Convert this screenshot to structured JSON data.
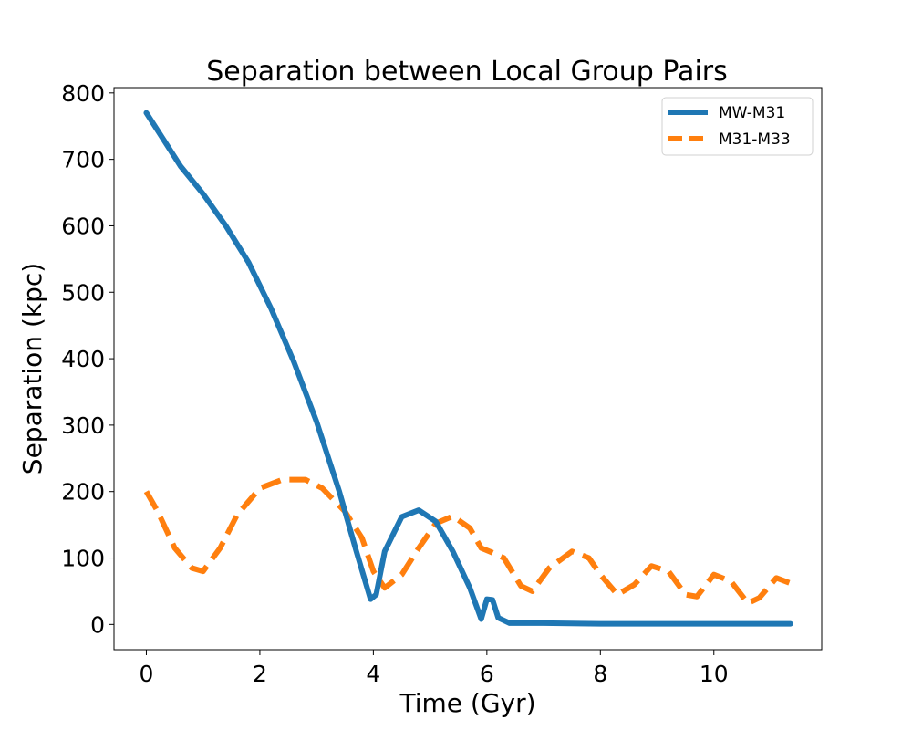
{
  "chart_data": {
    "type": "line",
    "title": "Separation between Local Group Pairs",
    "xlabel": "Time (Gyr)",
    "ylabel": "Separation (kpc)",
    "xlim": [
      -0.57,
      11.9
    ],
    "ylim": [
      -38,
      808
    ],
    "xticks": [
      0,
      2,
      4,
      6,
      8,
      10
    ],
    "xtick_labels": [
      "0",
      "2",
      "4",
      "6",
      "8",
      "10"
    ],
    "yticks": [
      0,
      100,
      200,
      300,
      400,
      500,
      600,
      700,
      800
    ],
    "ytick_labels": [
      "0",
      "100",
      "200",
      "300",
      "400",
      "500",
      "600",
      "700",
      "800"
    ],
    "grid": false,
    "legend_position": "top-right",
    "series": [
      {
        "name": "MW-M31",
        "color": "#1f77b4",
        "style": "solid",
        "x": [
          0,
          0.3,
          0.6,
          1.0,
          1.4,
          1.8,
          2.2,
          2.6,
          3.0,
          3.4,
          3.7,
          3.95,
          4.05,
          4.2,
          4.5,
          4.8,
          5.1,
          5.4,
          5.7,
          5.9,
          6.0,
          6.1,
          6.2,
          6.4,
          7.0,
          8.0,
          9.0,
          10.0,
          11.35
        ],
        "y": [
          770,
          730,
          690,
          648,
          600,
          545,
          475,
          395,
          305,
          200,
          110,
          38,
          45,
          110,
          162,
          172,
          155,
          110,
          55,
          8,
          38,
          37,
          10,
          2,
          2,
          1,
          1,
          1,
          1
        ]
      },
      {
        "name": "M31-M33",
        "color": "#ff7f0e",
        "style": "dashed",
        "x": [
          0,
          0.2,
          0.5,
          0.8,
          1.0,
          1.3,
          1.6,
          2.0,
          2.4,
          2.8,
          3.1,
          3.5,
          3.8,
          4.0,
          4.2,
          4.5,
          4.8,
          5.1,
          5.4,
          5.7,
          5.9,
          6.1,
          6.3,
          6.6,
          6.8,
          7.1,
          7.5,
          7.8,
          8.0,
          8.3,
          8.6,
          8.9,
          9.2,
          9.5,
          9.7,
          10.0,
          10.3,
          10.6,
          10.8,
          11.1,
          11.35
        ],
        "y": [
          200,
          170,
          115,
          85,
          80,
          115,
          165,
          205,
          218,
          218,
          205,
          170,
          130,
          80,
          55,
          75,
          115,
          152,
          163,
          145,
          115,
          108,
          100,
          58,
          50,
          85,
          110,
          100,
          75,
          45,
          60,
          88,
          80,
          45,
          42,
          75,
          65,
          32,
          40,
          70,
          62
        ]
      }
    ]
  }
}
